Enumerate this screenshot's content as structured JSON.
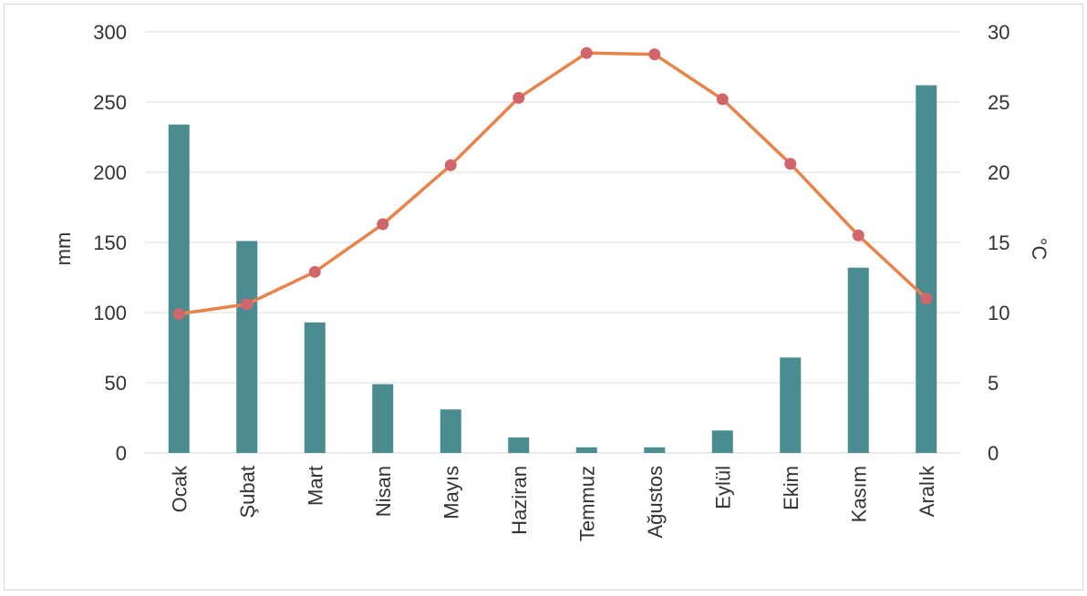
{
  "chart_data": {
    "type": "bar",
    "categories": [
      "Ocak",
      "Şubat",
      "Mart",
      "Nisan",
      "Mayıs",
      "Haziran",
      "Temmuz",
      "Ağustos",
      "Eylül",
      "Ekim",
      "Kasım",
      "Aralık"
    ],
    "series": [
      {
        "type": "bar",
        "axis": "left",
        "color": "#4a8c8f",
        "values": [
          234,
          151,
          93,
          49,
          31,
          11,
          4,
          4,
          16,
          68,
          132,
          262
        ]
      },
      {
        "type": "line",
        "axis": "right",
        "color": "#e8834a",
        "marker_color": "#d0666b",
        "values": [
          9.9,
          10.6,
          12.9,
          16.3,
          20.5,
          25.3,
          28.5,
          28.4,
          25.2,
          20.6,
          15.5,
          11.0
        ]
      }
    ],
    "ylabel": "mm",
    "y2label": "°C",
    "ylim": [
      0,
      300
    ],
    "y2lim": [
      0,
      30
    ],
    "yticks": [
      "0",
      "50",
      "100",
      "150",
      "200",
      "250",
      "300"
    ],
    "y2ticks": [
      "0",
      "5",
      "10",
      "15",
      "20",
      "25",
      "30"
    ],
    "grid": true
  }
}
